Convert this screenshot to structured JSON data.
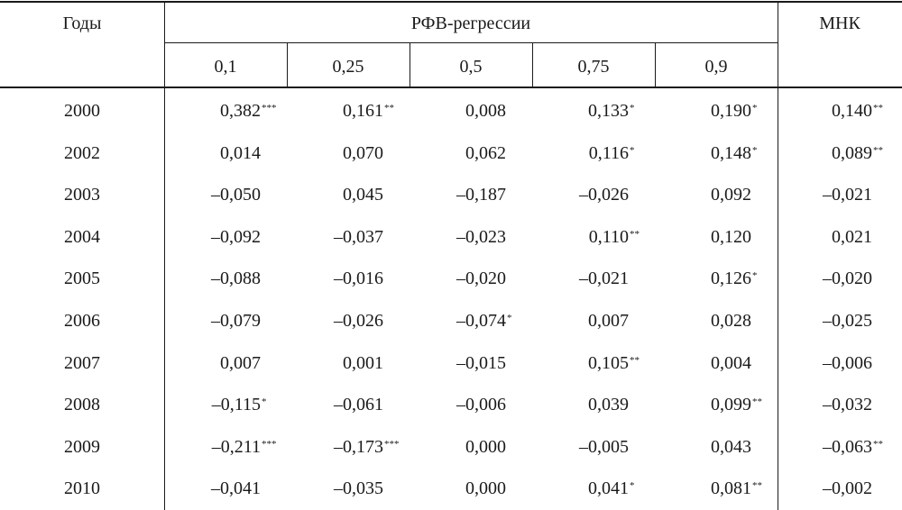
{
  "header": {
    "years": "Годы",
    "group": "РФВ-регрессии",
    "quantiles": [
      "0,1",
      "0,25",
      "0,5",
      "0,75",
      "0,9"
    ],
    "ols": "МНК"
  },
  "rows": [
    {
      "year": "2000",
      "cells": [
        {
          "v": "0,382",
          "s": "***"
        },
        {
          "v": "0,161",
          "s": "**"
        },
        {
          "v": "0,008",
          "s": ""
        },
        {
          "v": "0,133",
          "s": "*"
        },
        {
          "v": "0,190",
          "s": "*"
        },
        {
          "v": "0,140",
          "s": "**"
        }
      ]
    },
    {
      "year": "2002",
      "cells": [
        {
          "v": "0,014",
          "s": ""
        },
        {
          "v": "0,070",
          "s": ""
        },
        {
          "v": "0,062",
          "s": ""
        },
        {
          "v": "0,116",
          "s": "*"
        },
        {
          "v": "0,148",
          "s": "*"
        },
        {
          "v": "0,089",
          "s": "**"
        }
      ]
    },
    {
      "year": "2003",
      "cells": [
        {
          "v": "–0,050",
          "s": ""
        },
        {
          "v": "0,045",
          "s": ""
        },
        {
          "v": "–0,187",
          "s": ""
        },
        {
          "v": "–0,026",
          "s": ""
        },
        {
          "v": "0,092",
          "s": ""
        },
        {
          "v": "–0,021",
          "s": ""
        }
      ]
    },
    {
      "year": "2004",
      "cells": [
        {
          "v": "–0,092",
          "s": ""
        },
        {
          "v": "–0,037",
          "s": ""
        },
        {
          "v": "–0,023",
          "s": ""
        },
        {
          "v": "0,110",
          "s": "**"
        },
        {
          "v": "0,120",
          "s": ""
        },
        {
          "v": "0,021",
          "s": ""
        }
      ]
    },
    {
      "year": "2005",
      "cells": [
        {
          "v": "–0,088",
          "s": ""
        },
        {
          "v": "–0,016",
          "s": ""
        },
        {
          "v": "–0,020",
          "s": ""
        },
        {
          "v": "–0,021",
          "s": ""
        },
        {
          "v": "0,126",
          "s": "*"
        },
        {
          "v": "–0,020",
          "s": ""
        }
      ]
    },
    {
      "year": "2006",
      "cells": [
        {
          "v": "–0,079",
          "s": ""
        },
        {
          "v": "–0,026",
          "s": ""
        },
        {
          "v": "–0,074",
          "s": "*"
        },
        {
          "v": "0,007",
          "s": ""
        },
        {
          "v": "0,028",
          "s": ""
        },
        {
          "v": "–0,025",
          "s": ""
        }
      ]
    },
    {
      "year": "2007",
      "cells": [
        {
          "v": "0,007",
          "s": ""
        },
        {
          "v": "0,001",
          "s": ""
        },
        {
          "v": "–0,015",
          "s": ""
        },
        {
          "v": "0,105",
          "s": "**"
        },
        {
          "v": "0,004",
          "s": ""
        },
        {
          "v": "–0,006",
          "s": ""
        }
      ]
    },
    {
      "year": "2008",
      "cells": [
        {
          "v": "–0,115",
          "s": "*"
        },
        {
          "v": "–0,061",
          "s": ""
        },
        {
          "v": "–0,006",
          "s": ""
        },
        {
          "v": "0,039",
          "s": ""
        },
        {
          "v": "0,099",
          "s": "**"
        },
        {
          "v": "–0,032",
          "s": ""
        }
      ]
    },
    {
      "year": "2009",
      "cells": [
        {
          "v": "–0,211",
          "s": "***"
        },
        {
          "v": "–0,173",
          "s": "***"
        },
        {
          "v": "0,000",
          "s": ""
        },
        {
          "v": "–0,005",
          "s": ""
        },
        {
          "v": "0,043",
          "s": ""
        },
        {
          "v": "–0,063",
          "s": "**"
        }
      ]
    },
    {
      "year": "2010",
      "cells": [
        {
          "v": "–0,041",
          "s": ""
        },
        {
          "v": "–0,035",
          "s": ""
        },
        {
          "v": "0,000",
          "s": ""
        },
        {
          "v": "0,041",
          "s": "*"
        },
        {
          "v": "0,081",
          "s": "**"
        },
        {
          "v": "–0,002",
          "s": ""
        }
      ]
    }
  ]
}
